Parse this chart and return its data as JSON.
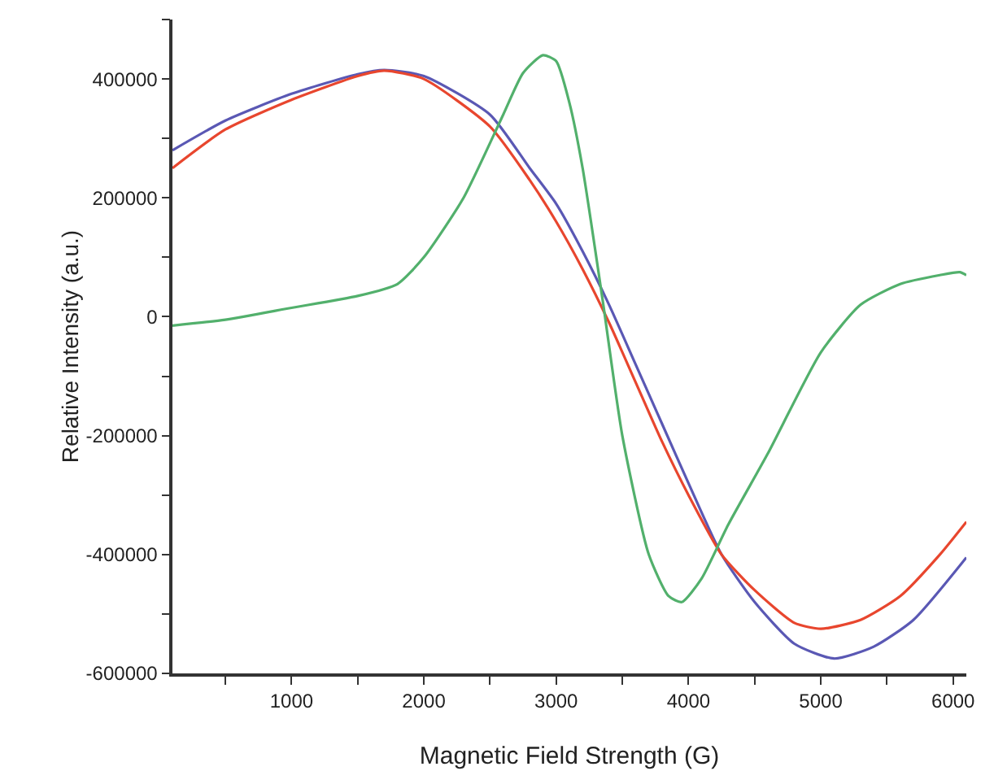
{
  "chart_data": {
    "type": "line",
    "xlabel": "Magnetic Field Strength (G)",
    "ylabel": "Relative Intensity (a.u.)",
    "xlim": [
      100,
      6100
    ],
    "ylim": [
      -600000,
      500000
    ],
    "xticks": [
      {
        "value": 500,
        "label": null
      },
      1000,
      {
        "value": 1500,
        "label": null
      },
      2000,
      {
        "value": 2500,
        "label": null
      },
      3000,
      {
        "value": 3500,
        "label": null
      },
      4000,
      {
        "value": 4500,
        "label": null
      },
      5000,
      {
        "value": 5500,
        "label": null
      },
      6000
    ],
    "yticks": [
      -600000,
      {
        "value": -500000,
        "label": null
      },
      -400000,
      {
        "value": -300000,
        "label": null
      },
      -200000,
      {
        "value": -100000,
        "label": null
      },
      0,
      {
        "value": 100000,
        "label": null
      },
      200000,
      {
        "value": 300000,
        "label": null
      },
      400000,
      {
        "value": 500000,
        "label": null
      }
    ],
    "grid": false,
    "marker": "none",
    "line_style": "solid",
    "series": [
      {
        "color": "#5a58b4",
        "x": [
          100,
          500,
          1000,
          1500,
          1700,
          2000,
          2500,
          2800,
          3000,
          3200,
          3400,
          3600,
          3800,
          4000,
          4250,
          4500,
          4800,
          5100,
          5400,
          5700,
          6100
        ],
        "values": [
          280000,
          330000,
          375000,
          408000,
          415000,
          405000,
          340000,
          250000,
          190000,
          110000,
          20000,
          -80000,
          -180000,
          -280000,
          -400000,
          -480000,
          -550000,
          -575000,
          -555000,
          -510000,
          -405000
        ]
      },
      {
        "color": "#e8462e",
        "x": [
          100,
          500,
          1000,
          1500,
          1700,
          2000,
          2500,
          2800,
          3000,
          3200,
          3400,
          3600,
          3800,
          4000,
          4250,
          4500,
          4800,
          5000,
          5300,
          5600,
          5900,
          6100
        ],
        "values": [
          250000,
          315000,
          365000,
          405000,
          414000,
          400000,
          320000,
          230000,
          160000,
          80000,
          -10000,
          -110000,
          -210000,
          -300000,
          -400000,
          -460000,
          -515000,
          -525000,
          -510000,
          -470000,
          -400000,
          -345000
        ]
      },
      {
        "color": "#52b06c",
        "x": [
          100,
          500,
          1000,
          1500,
          1800,
          2000,
          2300,
          2600,
          2750,
          2900,
          3000,
          3100,
          3200,
          3350,
          3500,
          3700,
          3850,
          3950,
          4100,
          4300,
          4600,
          5000,
          5300,
          5600,
          5900,
          6050,
          6100
        ],
        "values": [
          -15000,
          -5000,
          15000,
          35000,
          55000,
          100000,
          200000,
          340000,
          410000,
          440000,
          430000,
          360000,
          250000,
          30000,
          -200000,
          -400000,
          -470000,
          -480000,
          -440000,
          -350000,
          -230000,
          -60000,
          20000,
          55000,
          70000,
          75000,
          70000
        ]
      }
    ]
  }
}
